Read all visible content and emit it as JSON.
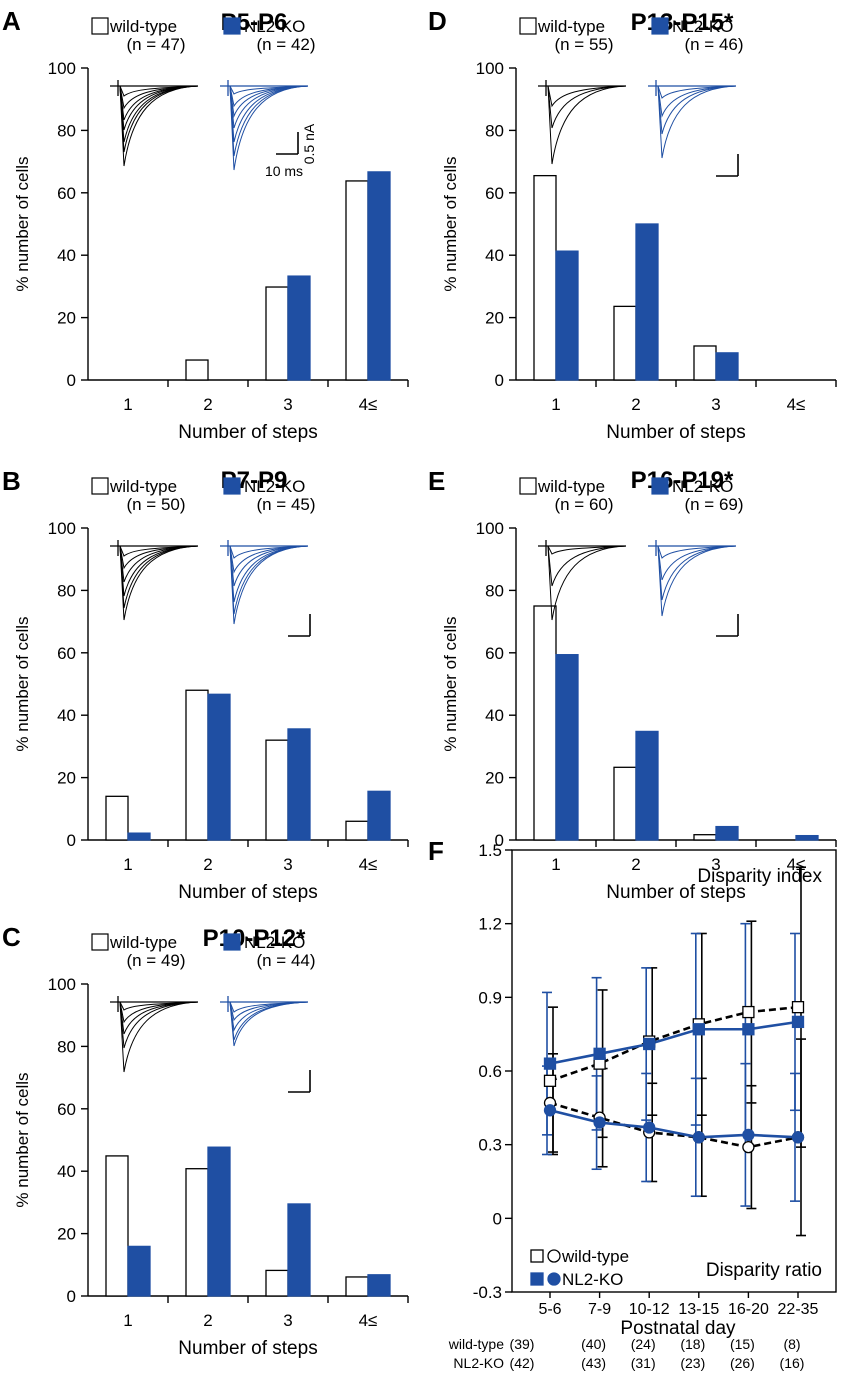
{
  "colors": {
    "wt_fill": "#ffffff",
    "ko_fill": "#1f4fa3",
    "ko_line": "#1f4fa3",
    "axis": "#000000"
  },
  "panels": [
    {
      "letter": "A",
      "title": "P5-P6",
      "legend_wt": "wild-type",
      "legend_ko": "NL2-KO",
      "n_wt": "(n = 47)",
      "n_ko": "(n = 42)"
    },
    {
      "letter": "D",
      "title": "P13-P15*",
      "legend_wt": "wild-type",
      "legend_ko": "NL2-KO",
      "n_wt": "(n = 55)",
      "n_ko": "(n = 46)"
    },
    {
      "letter": "B",
      "title": "P7-P9",
      "legend_wt": "wild-type",
      "legend_ko": "NL2-KO",
      "n_wt": "(n = 50)",
      "n_ko": "(n = 45)"
    },
    {
      "letter": "E",
      "title": "P16-P19*",
      "legend_wt": "wild-type",
      "legend_ko": "NL2-KO",
      "n_wt": "(n = 60)",
      "n_ko": "(n = 69)"
    },
    {
      "letter": "C",
      "title": "P10-P12*",
      "legend_wt": "wild-type",
      "legend_ko": "NL2-KO",
      "n_wt": "(n = 49)",
      "n_ko": "(n = 44)"
    }
  ],
  "scalebar": {
    "ms": "10 ms",
    "na": "0.5 nA"
  },
  "panel_f": {
    "letter": "F",
    "label_index": "Disparity index",
    "label_ratio": "Disparity ratio",
    "legend_wt": "wild-type",
    "legend_ko": "NL2-KO",
    "row_wt": "wild-type",
    "row_ko": "NL2-KO",
    "counts_wt": [
      "(39)",
      "(40)",
      "(24)",
      "(18)",
      "(15)",
      "(8)"
    ],
    "counts_ko": [
      "(42)",
      "(43)",
      "(31)",
      "(23)",
      "(26)",
      "(16)"
    ]
  },
  "chart_data": [
    {
      "type": "bar",
      "panel": "A",
      "title": "P5-P6",
      "categories": [
        "1",
        "2",
        "3",
        "4≤"
      ],
      "series": [
        {
          "name": "wild-type",
          "values": [
            0,
            6.4,
            29.8,
            63.8
          ]
        },
        {
          "name": "NL2-KO",
          "values": [
            0,
            0,
            33.3,
            66.7
          ]
        }
      ],
      "xlabel": "Number of steps",
      "ylabel": "% number of cells",
      "ylim": [
        0,
        100
      ],
      "yticks": [
        "0",
        "20",
        "40",
        "60",
        "80",
        "100"
      ]
    },
    {
      "type": "bar",
      "panel": "D",
      "title": "P13-P15*",
      "categories": [
        "1",
        "2",
        "3",
        "4≤"
      ],
      "series": [
        {
          "name": "wild-type",
          "values": [
            65.5,
            23.6,
            10.9,
            0
          ]
        },
        {
          "name": "NL2-KO",
          "values": [
            41.3,
            50,
            8.7,
            0
          ]
        }
      ],
      "xlabel": "Number of steps",
      "ylabel": "% number of cells",
      "ylim": [
        0,
        100
      ],
      "yticks": [
        "0",
        "20",
        "40",
        "60",
        "80",
        "100"
      ]
    },
    {
      "type": "bar",
      "panel": "B",
      "title": "P7-P9",
      "categories": [
        "1",
        "2",
        "3",
        "4≤"
      ],
      "series": [
        {
          "name": "wild-type",
          "values": [
            14,
            48,
            32,
            6
          ]
        },
        {
          "name": "NL2-KO",
          "values": [
            2.2,
            46.7,
            35.6,
            15.6
          ]
        }
      ],
      "xlabel": "Number of steps",
      "ylabel": "% number of cells",
      "ylim": [
        0,
        100
      ],
      "yticks": [
        "0",
        "20",
        "40",
        "60",
        "80",
        "100"
      ]
    },
    {
      "type": "bar",
      "panel": "E",
      "title": "P16-P19*",
      "categories": [
        "1",
        "2",
        "3",
        "4≤"
      ],
      "series": [
        {
          "name": "wild-type",
          "values": [
            75,
            23.3,
            1.7,
            0
          ]
        },
        {
          "name": "NL2-KO",
          "values": [
            59.4,
            34.8,
            4.3,
            1.4
          ]
        }
      ],
      "xlabel": "Number of steps",
      "ylabel": "% number of cells",
      "ylim": [
        0,
        100
      ],
      "yticks": [
        "0",
        "20",
        "40",
        "60",
        "80",
        "100"
      ]
    },
    {
      "type": "bar",
      "panel": "C",
      "title": "P10-P12*",
      "categories": [
        "1",
        "2",
        "3",
        "4≤"
      ],
      "series": [
        {
          "name": "wild-type",
          "values": [
            44.9,
            40.8,
            8.2,
            6.1
          ]
        },
        {
          "name": "NL2-KO",
          "values": [
            15.9,
            47.7,
            29.5,
            6.8
          ]
        }
      ],
      "xlabel": "Number of steps",
      "ylabel": "% number of cells",
      "ylim": [
        0,
        100
      ],
      "yticks": [
        "0",
        "20",
        "40",
        "60",
        "80",
        "100"
      ]
    },
    {
      "type": "line",
      "panel": "F",
      "categories": [
        "5-6",
        "7-9",
        "10-12",
        "13-15",
        "16-20",
        "22-35"
      ],
      "xlabel": "Postnatal day",
      "ylabel": "",
      "ylim": [
        -0.3,
        1.5
      ],
      "yticks": [
        "-0.3",
        "0",
        "0.3",
        "0.6",
        "0.9",
        "1.2",
        "1.5"
      ],
      "series": [
        {
          "name": "wild-type disparity index",
          "marker": "square",
          "values": [
            0.56,
            0.63,
            0.72,
            0.79,
            0.84,
            0.86
          ],
          "err": [
            0.3,
            0.3,
            0.3,
            0.37,
            0.37,
            0.57
          ]
        },
        {
          "name": "NL2-KO disparity index",
          "marker": "square",
          "values": [
            0.63,
            0.67,
            0.71,
            0.77,
            0.77,
            0.8
          ],
          "err": [
            0.29,
            0.31,
            0.31,
            0.39,
            0.43,
            0.36
          ]
        },
        {
          "name": "wild-type disparity ratio",
          "marker": "circle",
          "values": [
            0.47,
            0.41,
            0.35,
            0.33,
            0.29,
            0.33
          ],
          "err": [
            0.2,
            0.2,
            0.2,
            0.24,
            0.25,
            0.4
          ]
        },
        {
          "name": "NL2-KO disparity ratio",
          "marker": "circle",
          "values": [
            0.44,
            0.39,
            0.37,
            0.33,
            0.34,
            0.33
          ],
          "err": [
            0.18,
            0.19,
            0.22,
            0.24,
            0.29,
            0.26
          ]
        }
      ]
    }
  ]
}
